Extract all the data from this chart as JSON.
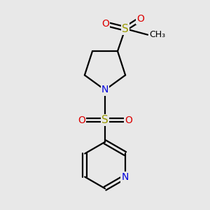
{
  "bg_color": "#e8e8e8",
  "colors": {
    "C": "#000000",
    "N": "#0000dd",
    "S": "#999900",
    "O": "#dd0000",
    "bond": "#000000"
  },
  "bond_lw": 1.6,
  "fig_size": [
    3.0,
    3.0
  ],
  "dpi": 100,
  "xlim": [
    -2.5,
    2.5
  ],
  "ylim": [
    -3.8,
    3.8
  ]
}
